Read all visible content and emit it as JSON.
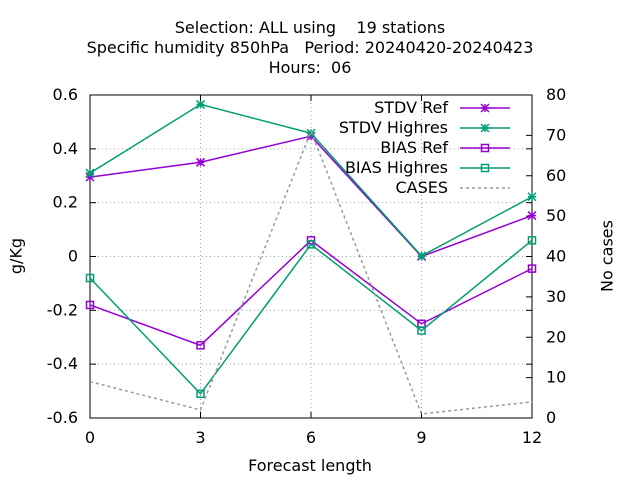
{
  "title": {
    "line1": "Selection: ALL using    19 stations",
    "line2": "Specific humidity 850hPa   Period: 20240420-20240423",
    "line3": "Hours:  06"
  },
  "chart_data": {
    "type": "line",
    "xlabel": "Forecast length",
    "ylabel": "g/Kg",
    "y2label": "No cases",
    "x": [
      0,
      3,
      6,
      9,
      12
    ],
    "xticks": [
      "0",
      "3",
      "6",
      "9",
      "12"
    ],
    "xlim": [
      0,
      12
    ],
    "ylim": [
      -0.6,
      0.6
    ],
    "yticks": [
      "-0.6",
      "-0.4",
      "-0.2",
      "0",
      "0.2",
      "0.4",
      "0.6"
    ],
    "y2lim": [
      0,
      80
    ],
    "y2ticks": [
      "0",
      "10",
      "20",
      "30",
      "40",
      "50",
      "60",
      "70",
      "80"
    ],
    "grid": true,
    "legend_position": "top-right",
    "series": [
      {
        "name": "STDV Ref",
        "axis": "y",
        "color": "#9400d3",
        "marker": "star",
        "dash": false,
        "values": [
          0.295,
          0.35,
          0.447,
          0.0,
          0.152
        ]
      },
      {
        "name": "STDV Highres",
        "axis": "y",
        "color": "#009e73",
        "marker": "star",
        "dash": false,
        "values": [
          0.31,
          0.565,
          0.458,
          0.002,
          0.222
        ]
      },
      {
        "name": "BIAS Ref",
        "axis": "y",
        "color": "#9400d3",
        "marker": "square",
        "dash": false,
        "values": [
          -0.18,
          -0.33,
          0.06,
          -0.25,
          -0.045
        ]
      },
      {
        "name": "BIAS Highres",
        "axis": "y",
        "color": "#009e73",
        "marker": "square",
        "dash": false,
        "values": [
          -0.08,
          -0.51,
          0.045,
          -0.275,
          0.06
        ]
      },
      {
        "name": "CASES",
        "axis": "y2",
        "color": "#999999",
        "marker": "none",
        "dash": true,
        "values": [
          9,
          2,
          71,
          1,
          4
        ]
      }
    ]
  }
}
